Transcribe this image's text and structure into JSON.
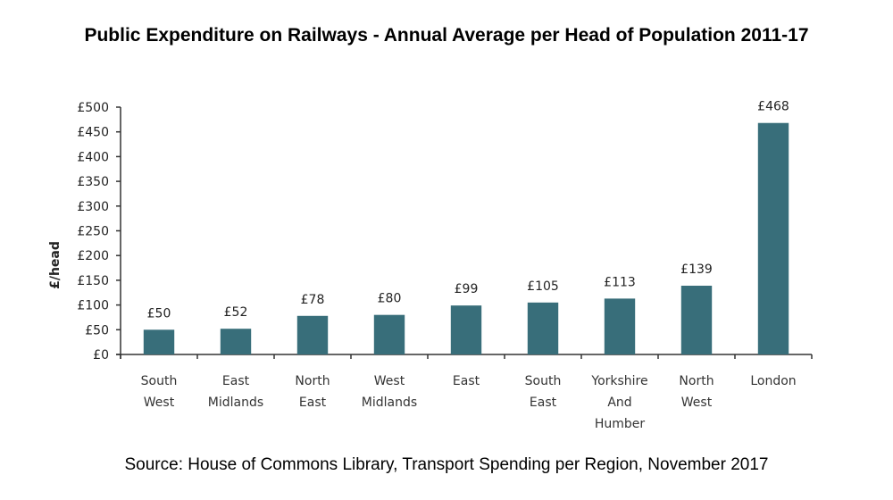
{
  "chart_data": {
    "type": "bar",
    "title": "Public Expenditure on Railways - Annual Average per Head of Population 2011-17",
    "source": "Source: House of Commons Library, Transport Spending per Region, November 2017",
    "xlabel": "",
    "ylabel": "£/head",
    "ylim": [
      0,
      500
    ],
    "ytick_step": 50,
    "ytick_prefix": "£",
    "grid": false,
    "legend": "none",
    "bar_color": "#386e7a",
    "categories": [
      [
        "South",
        "West"
      ],
      [
        "East",
        "Midlands"
      ],
      [
        "North",
        "East"
      ],
      [
        "West",
        "Midlands"
      ],
      [
        "East"
      ],
      [
        "South",
        "East"
      ],
      [
        "Yorkshire",
        "And",
        "Humber"
      ],
      [
        "North",
        "West"
      ],
      [
        "London"
      ]
    ],
    "values": [
      50,
      52,
      78,
      80,
      99,
      105,
      113,
      139,
      468
    ],
    "data_labels": [
      "£50",
      "£52",
      "£78",
      "£80",
      "£99",
      "£105",
      "£113",
      "£139",
      "£468"
    ]
  }
}
